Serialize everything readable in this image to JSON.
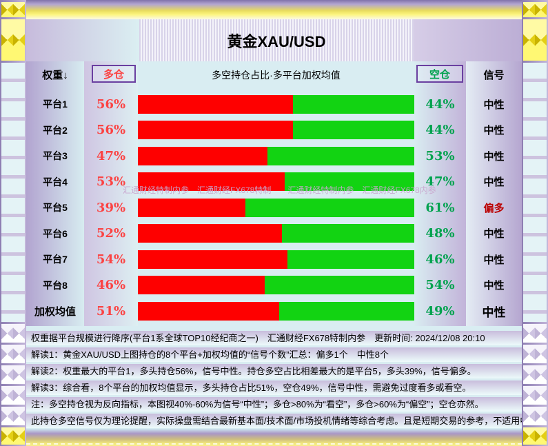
{
  "title": "黄金XAU/USD",
  "header": {
    "weight": "权重↓",
    "long_label": "多仓",
    "center": "多空持仓占比·多平台加权均值",
    "short_label": "空仓",
    "signal": "信号"
  },
  "colors": {
    "long_bar": "#fe0000",
    "short_bar": "#12d312",
    "long_text": "#fb4343",
    "short_text": "#00a24e",
    "signal_neutral": "#000000",
    "signal_bullish": "#bb0000",
    "box_border": "#6a3fa0"
  },
  "rows": [
    {
      "platform": "平台1",
      "long_pct": 56,
      "short_pct": 44,
      "signal": "中性",
      "signal_color": "#000000",
      "weighted": false
    },
    {
      "platform": "平台2",
      "long_pct": 56,
      "short_pct": 44,
      "signal": "中性",
      "signal_color": "#000000",
      "weighted": false
    },
    {
      "platform": "平台3",
      "long_pct": 47,
      "short_pct": 53,
      "signal": "中性",
      "signal_color": "#000000",
      "weighted": false
    },
    {
      "platform": "平台4",
      "long_pct": 53,
      "short_pct": 47,
      "signal": "中性",
      "signal_color": "#000000",
      "weighted": false
    },
    {
      "platform": "平台5",
      "long_pct": 39,
      "short_pct": 61,
      "signal": "偏多",
      "signal_color": "#bb0000",
      "weighted": false
    },
    {
      "platform": "平台6",
      "long_pct": 52,
      "short_pct": 48,
      "signal": "中性",
      "signal_color": "#000000",
      "weighted": false
    },
    {
      "platform": "平台7",
      "long_pct": 54,
      "short_pct": 46,
      "signal": "中性",
      "signal_color": "#000000",
      "weighted": false
    },
    {
      "platform": "平台8",
      "long_pct": 46,
      "short_pct": 54,
      "signal": "中性",
      "signal_color": "#000000",
      "weighted": false
    },
    {
      "platform": "加权均值",
      "long_pct": 51,
      "short_pct": 49,
      "signal": "中性",
      "signal_color": "#000000",
      "weighted": true
    }
  ],
  "watermark": "汇通财经特制内参　汇通财经FX678特制　　汇通财经特制内参　汇通财经FX678内参",
  "footnotes": [
    "权重据平台规模进行降序(平台1系全球TOP10经纪商之一)　汇通财经FX678特制内参　更新时间: 2024/12/08 20:10",
    "解读1：黄金XAU/USD上图持仓的8个平台+加权均值的“信号个数”汇总：偏多1个　中性8个",
    "解读2：权重最大的平台1，多头持仓56%，信号中性。持仓多空占比相差最大的是平台5，多头39%，信号偏多。",
    "解读3：综合看，8个平台的加权均值显示，多头持仓占比51%，空仓49%，信号中性，需避免过度看多或看空。",
    "注：多空持仓视为反向指标，本图视40%-60%为信号“中性”；多仓>80%为“看空”，多仓>60%为“偏空”；空仓亦然。",
    "此持仓多空信号仅为理论提醒，实际操盘需结合最新基本面/技术面/市场投机情绪等综合考虑。且是短期交易的参考，不适用中长期。"
  ],
  "chart_data": {
    "type": "bar",
    "orientation": "horizontal-stacked",
    "title": "黄金XAU/USD",
    "subtitle": "多空持仓占比·多平台加权均值",
    "categories": [
      "平台1",
      "平台2",
      "平台3",
      "平台4",
      "平台5",
      "平台6",
      "平台7",
      "平台8",
      "加权均值"
    ],
    "series": [
      {
        "name": "多仓",
        "color": "#fe0000",
        "values": [
          56,
          56,
          47,
          53,
          39,
          52,
          54,
          46,
          51
        ]
      },
      {
        "name": "空仓",
        "color": "#12d312",
        "values": [
          44,
          44,
          53,
          47,
          61,
          48,
          46,
          54,
          49
        ]
      }
    ],
    "signals": [
      "中性",
      "中性",
      "中性",
      "中性",
      "偏多",
      "中性",
      "中性",
      "中性",
      "中性"
    ],
    "xlim": [
      0,
      100
    ],
    "legend_position": "header-boxes",
    "grid": false
  }
}
